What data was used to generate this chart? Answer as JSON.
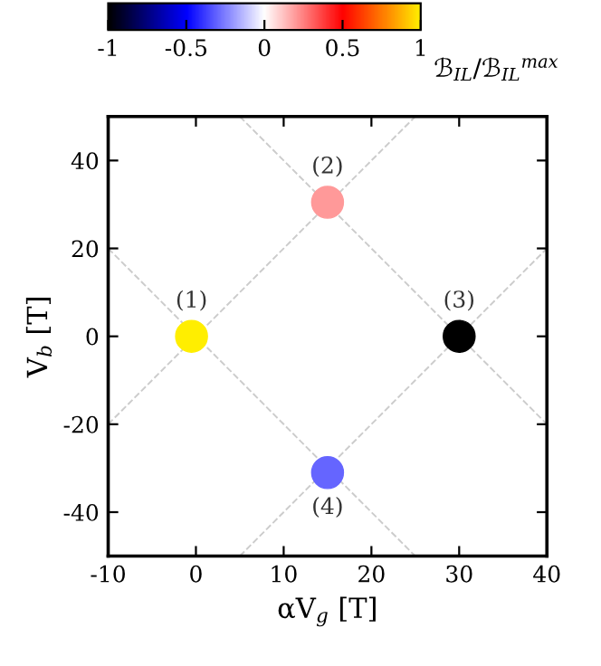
{
  "chart_data": {
    "type": "scatter",
    "xlabel": "αV$_{g}$ [T]",
    "ylabel": "V$_{b}$ [T]",
    "clabel": "ℬ$_{IL}$/ℬ$_{IL}$$^{max}$",
    "xlim": [
      -10,
      40
    ],
    "xticks": [
      -10,
      0,
      10,
      20,
      30,
      40
    ],
    "ylim": [
      -50,
      50
    ],
    "yticks": [
      -40,
      -20,
      0,
      20,
      40
    ],
    "clim": [
      -1,
      1
    ],
    "cticks": [
      -1,
      -0.5,
      0,
      0.5,
      1
    ],
    "grid": false,
    "series": [
      {
        "type": "line",
        "color": "#cccccc",
        "line_style": "dashed",
        "x": [
          -10,
          25
        ],
        "values": [
          -20,
          50
        ]
      },
      {
        "type": "line",
        "color": "#cccccc",
        "line_style": "dashed",
        "x": [
          -10,
          25
        ],
        "values": [
          20,
          -50
        ]
      },
      {
        "type": "line",
        "color": "#cccccc",
        "line_style": "dashed",
        "x": [
          5,
          40
        ],
        "values": [
          50,
          -20
        ]
      },
      {
        "type": "line",
        "color": "#cccccc",
        "line_style": "dashed",
        "x": [
          5,
          40
        ],
        "values": [
          -50,
          20
        ]
      },
      {
        "marker": "circle",
        "x": [
          -0.5,
          15,
          30,
          15
        ],
        "values": [
          0,
          30.5,
          0,
          -31
        ],
        "cvalues": [
          1,
          0.2,
          -1,
          -0.3
        ],
        "colors": [
          "#ffee00",
          "#ff9999",
          "#000000",
          "#6666ff"
        ]
      }
    ],
    "annotations": [
      "(1)",
      "(2)",
      "(3)",
      "(4)"
    ]
  }
}
